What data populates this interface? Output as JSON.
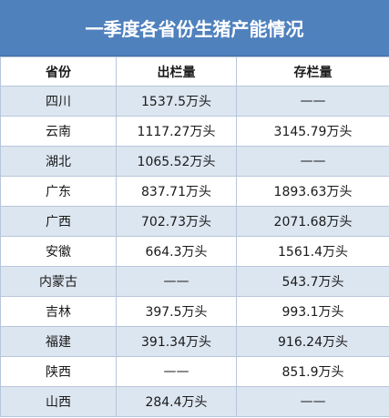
{
  "title": "一季度各省份生猪产能情况",
  "headers": [
    "省份",
    "出栏量",
    "存栏量"
  ],
  "rows": [
    [
      "四川",
      "1537.5万头",
      "——"
    ],
    [
      "云南",
      "1117.27万头",
      "3145.79万头"
    ],
    [
      "湖北",
      "1065.52万头",
      "——"
    ],
    [
      "广东",
      "837.71万头",
      "1893.63万头"
    ],
    [
      "广西",
      "702.73万头",
      "2071.68万头"
    ],
    [
      "安徽",
      "664.3万头",
      "1561.4万头"
    ],
    [
      "内蒙古",
      "——",
      "543.7万头"
    ],
    [
      "吉林",
      "397.5万头",
      "993.1万头"
    ],
    [
      "福建",
      "391.34万头",
      "916.24万头"
    ],
    [
      "陕西",
      "——",
      "851.9万头"
    ],
    [
      "山西",
      "284.4万头",
      "——"
    ]
  ],
  "colors": {
    "title_bg": "#4f81bd",
    "stripe": "#dce6f1",
    "border": "#b7c6da"
  }
}
